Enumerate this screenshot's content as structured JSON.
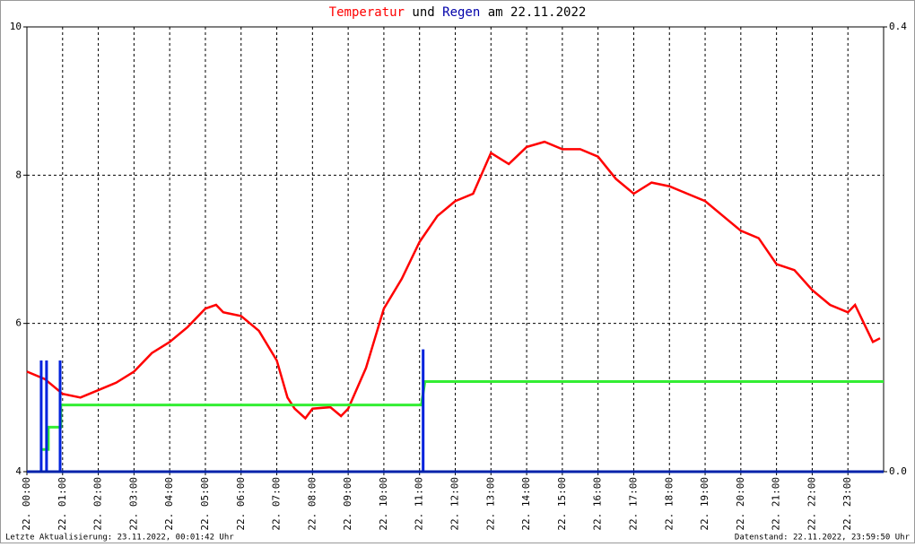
{
  "chart_data": {
    "type": "line",
    "title": {
      "part1": "Temperatur",
      "part2": "und",
      "part3": "Regen",
      "part4": "am 22.11.2022"
    },
    "footer_left": "Letzte Aktualisierung: 23.11.2022, 00:01:42 Uhr",
    "footer_right": "Datenstand: 22.11.2022, 23:59:50 Uhr",
    "xlim": [
      0,
      24
    ],
    "ylim": [
      4,
      10
    ],
    "y2lim": [
      0,
      0.4
    ],
    "grid": true,
    "yticks": [
      4,
      6,
      8,
      10
    ],
    "y2ticks": [
      {
        "value": 0,
        "label": "0.0"
      },
      0.4
    ],
    "xticks": [
      {
        "value": 0,
        "label": "22. 00:00"
      },
      {
        "value": 1,
        "label": "22. 01:00"
      },
      {
        "value": 2,
        "label": "22. 02:00"
      },
      {
        "value": 3,
        "label": "22. 03:00"
      },
      {
        "value": 4,
        "label": "22. 04:00"
      },
      {
        "value": 5,
        "label": "22. 05:00"
      },
      {
        "value": 6,
        "label": "22. 06:00"
      },
      {
        "value": 7,
        "label": "22. 07:00"
      },
      {
        "value": 8,
        "label": "22. 08:00"
      },
      {
        "value": 9,
        "label": "22. 09:00"
      },
      {
        "value": 10,
        "label": "22. 10:00"
      },
      {
        "value": 11,
        "label": "22. 11:00"
      },
      {
        "value": 12,
        "label": "22. 12:00"
      },
      {
        "value": 13,
        "label": "22. 13:00"
      },
      {
        "value": 14,
        "label": "22. 14:00"
      },
      {
        "value": 15,
        "label": "22. 15:00"
      },
      {
        "value": 16,
        "label": "22. 16:00"
      },
      {
        "value": 17,
        "label": "22. 17:00"
      },
      {
        "value": 18,
        "label": "22. 18:00"
      },
      {
        "value": 19,
        "label": "22. 19:00"
      },
      {
        "value": 20,
        "label": "22. 20:00"
      },
      {
        "value": 21,
        "label": "22. 21:00"
      },
      {
        "value": 22,
        "label": "22. 22:00"
      },
      {
        "value": 23,
        "label": "22. 23:00"
      }
    ],
    "series": [
      {
        "type": "line",
        "color": "#ff0000",
        "x": [
          0,
          0.5,
          1,
          1.5,
          2,
          2.5,
          3,
          3.5,
          4,
          4.5,
          5,
          5.3,
          5.5,
          6,
          6.5,
          7,
          7.3,
          7.5,
          7.8,
          8,
          8.5,
          8.8,
          9,
          9.5,
          10,
          10.5,
          11,
          11.5,
          12,
          12.5,
          13,
          13.5,
          14,
          14.5,
          15,
          15.5,
          16,
          16.5,
          17,
          17.5,
          18,
          18.5,
          19,
          19.5,
          20,
          20.5,
          21,
          21.5,
          22,
          22.5,
          23,
          23.2,
          23.5,
          23.7,
          23.9
        ],
        "values": [
          5.35,
          5.25,
          5.05,
          5.0,
          5.1,
          5.2,
          5.35,
          5.6,
          5.75,
          5.95,
          6.2,
          6.25,
          6.15,
          6.1,
          5.9,
          5.5,
          5.0,
          4.85,
          4.72,
          4.85,
          4.87,
          4.75,
          4.85,
          5.4,
          6.2,
          6.6,
          7.1,
          7.45,
          7.65,
          7.75,
          8.3,
          8.15,
          8.38,
          8.45,
          8.35,
          8.35,
          8.25,
          7.95,
          7.75,
          7.9,
          7.85,
          7.75,
          7.65,
          7.45,
          7.25,
          7.15,
          6.8,
          6.72,
          6.45,
          6.25,
          6.15,
          6.25,
          5.95,
          5.75,
          5.8
        ]
      },
      {
        "type": "line",
        "axis": "y2",
        "color": "#33ee33",
        "x": [
          0.4,
          0.6,
          0.6,
          0.95,
          0.95,
          11.05,
          11.15,
          24
        ],
        "values": [
          0.02,
          0.02,
          0.04,
          0.04,
          0.06,
          0.06,
          0.081,
          0.081
        ]
      },
      {
        "type": "bar",
        "axis": "y2",
        "color": "#0022dd",
        "x": [
          0.4,
          0.55,
          0.93,
          11.1
        ],
        "values": [
          0.1,
          0.1,
          0.1,
          0.11
        ]
      }
    ]
  }
}
